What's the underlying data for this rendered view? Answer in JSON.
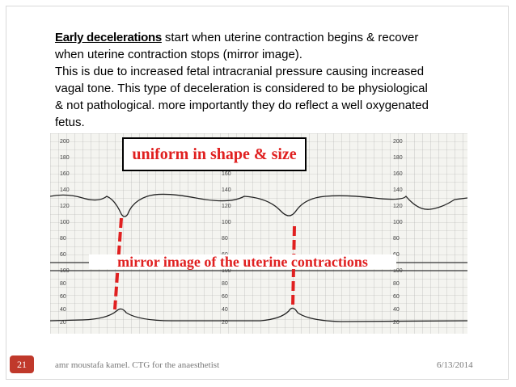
{
  "slide": {
    "body": {
      "lead": "Early decelerations",
      "first_line_rest": "start when uterine contraction begins & recover",
      "lines": [
        "when uterine contraction stops (mirror image).",
        "This is due to increased fetal intracranial pressure causing increased",
        "vagal tone. This type of deceleration is considered to be physiological",
        "& not pathological. more importantly they do reflect a well oxygenated",
        "fetus."
      ]
    },
    "figure": {
      "caption_top": "uniform in shape & size",
      "caption_bottom": "mirror image of the uterine contractions",
      "fhr_scale": [
        "200",
        "180",
        "160",
        "140",
        "120",
        "100",
        "80",
        "60"
      ],
      "uc_scale": [
        "100",
        "80",
        "60",
        "40",
        "20"
      ]
    },
    "footer": {
      "slide_number": "21",
      "text": "amr moustafa kamel. CTG for the anaesthetist",
      "date": "6/13/2014"
    }
  }
}
